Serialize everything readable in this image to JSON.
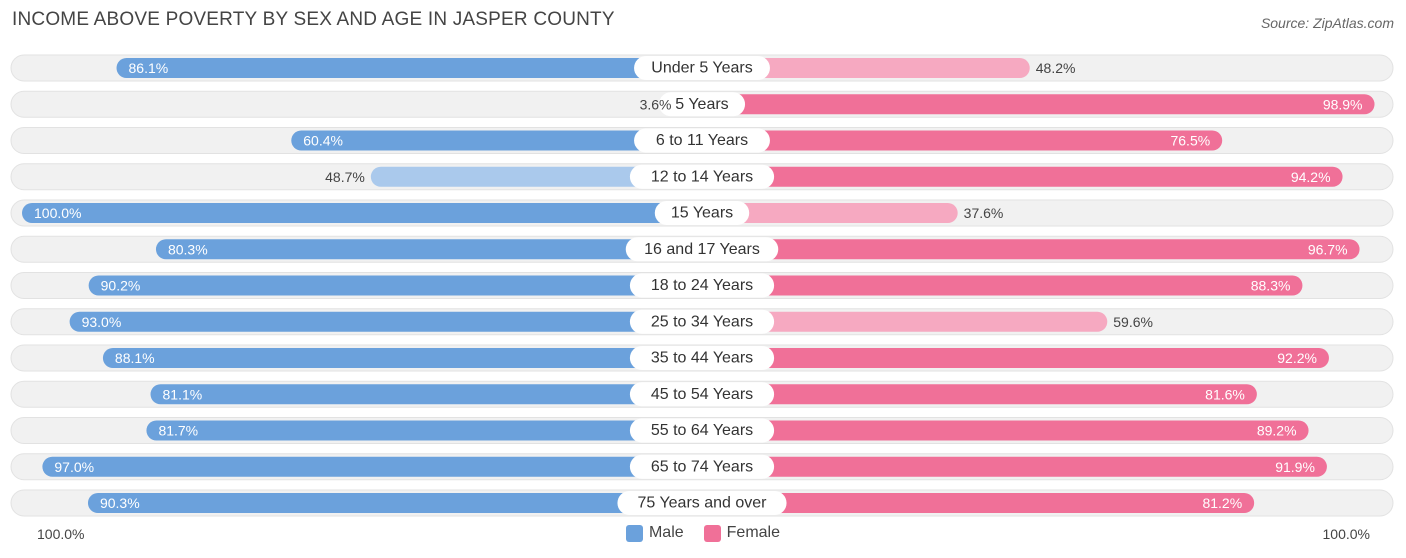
{
  "title": "INCOME ABOVE POVERTY BY SEX AND AGE IN JASPER COUNTY",
  "source": "Source: ZipAtlas.com",
  "axis": {
    "left_label": "100.0%",
    "right_label": "100.0%"
  },
  "colors": {
    "male_strong": "#6ba1dc",
    "male_light": "#aac9ec",
    "female_strong": "#f07098",
    "female_light": "#f6a9c1",
    "track": "#f1f1f1",
    "track_border": "#e2e2e2"
  },
  "chart_data": {
    "type": "bar",
    "orientation": "horizontal-diverging",
    "title": "INCOME ABOVE POVERTY BY SEX AND AGE IN JASPER COUNTY",
    "categories": [
      "Under 5 Years",
      "5 Years",
      "6 to 11 Years",
      "12 to 14 Years",
      "15 Years",
      "16 and 17 Years",
      "18 to 24 Years",
      "25 to 34 Years",
      "35 to 44 Years",
      "45 to 54 Years",
      "55 to 64 Years",
      "65 to 74 Years",
      "75 Years and over"
    ],
    "series": [
      {
        "name": "Male",
        "values": [
          86.1,
          3.6,
          60.4,
          48.7,
          100.0,
          80.3,
          90.2,
          93.0,
          88.1,
          81.1,
          81.7,
          97.0,
          90.3
        ],
        "labels": [
          "86.1%",
          "3.6%",
          "60.4%",
          "48.7%",
          "100.0%",
          "80.3%",
          "90.2%",
          "93.0%",
          "88.1%",
          "81.1%",
          "81.7%",
          "97.0%",
          "90.3%"
        ]
      },
      {
        "name": "Female",
        "values": [
          48.2,
          98.9,
          76.5,
          94.2,
          37.6,
          96.7,
          88.3,
          59.6,
          92.2,
          81.6,
          89.2,
          91.9,
          81.2
        ],
        "labels": [
          "48.2%",
          "98.9%",
          "76.5%",
          "94.2%",
          "37.6%",
          "96.7%",
          "88.3%",
          "59.6%",
          "92.2%",
          "81.6%",
          "89.2%",
          "91.9%",
          "81.2%"
        ]
      }
    ],
    "xlim": [
      0,
      100
    ],
    "legend": {
      "position": "bottom-center",
      "entries": [
        "Male",
        "Female"
      ]
    }
  }
}
